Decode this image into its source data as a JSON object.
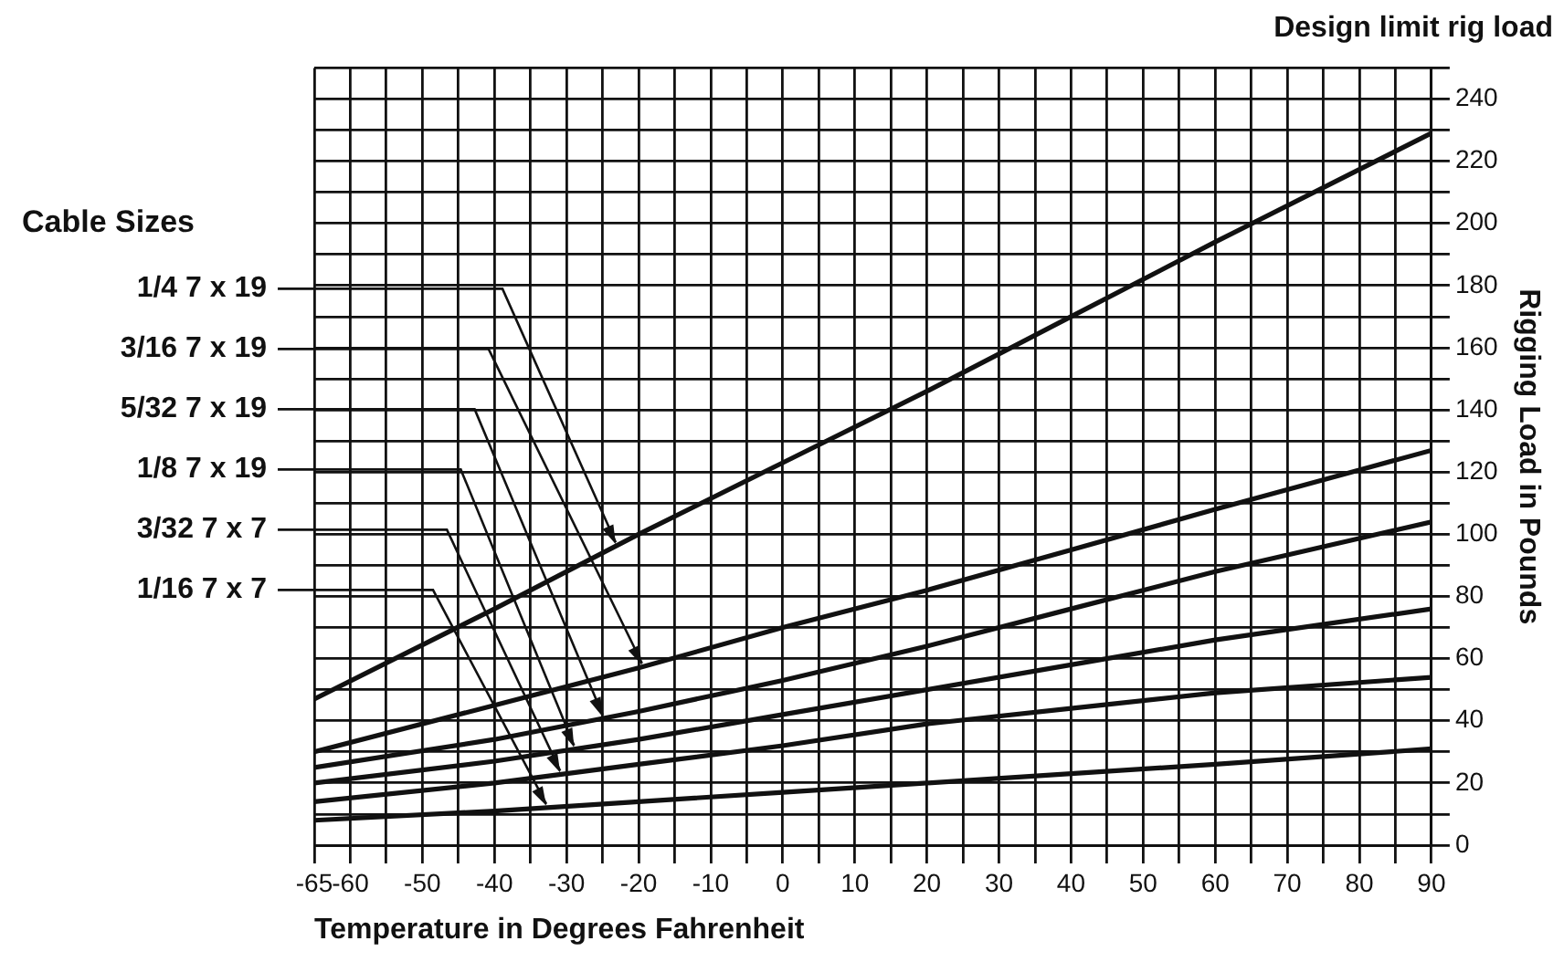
{
  "chart_data": {
    "type": "line",
    "title": "Design limit rig load",
    "xlabel": "Temperature in Degrees Fahrenheit",
    "ylabel": "Rigging Load in Pounds",
    "legend_title": "Cable Sizes",
    "legend": false,
    "grid": true,
    "marker": "none",
    "line_style": "solid",
    "x": [
      -65,
      -40,
      -20,
      0,
      20,
      40,
      60,
      90
    ],
    "xlim": [
      -65,
      90
    ],
    "xticks": [
      -65,
      -60,
      {
        "value": -55,
        "label": null
      },
      -50,
      {
        "value": -45,
        "label": null
      },
      -40,
      {
        "value": -35,
        "label": null
      },
      -30,
      {
        "value": -25,
        "label": null
      },
      -20,
      {
        "value": -15,
        "label": null
      },
      -10,
      {
        "value": -5,
        "label": null
      },
      0,
      {
        "value": 5,
        "label": null
      },
      10,
      {
        "value": 15,
        "label": null
      },
      20,
      {
        "value": 25,
        "label": null
      },
      30,
      {
        "value": 35,
        "label": null
      },
      40,
      {
        "value": 45,
        "label": null
      },
      50,
      {
        "value": 55,
        "label": null
      },
      60,
      {
        "value": 65,
        "label": null
      },
      70,
      {
        "value": 75,
        "label": null
      },
      80,
      {
        "value": 85,
        "label": null
      },
      90
    ],
    "ylim": [
      0,
      250
    ],
    "yticks": [
      0,
      {
        "value": 10,
        "label": null
      },
      20,
      {
        "value": 30,
        "label": null
      },
      40,
      {
        "value": 50,
        "label": null
      },
      60,
      {
        "value": 70,
        "label": null
      },
      80,
      {
        "value": 90,
        "label": null
      },
      100,
      {
        "value": 110,
        "label": null
      },
      120,
      {
        "value": 130,
        "label": null
      },
      140,
      {
        "value": 150,
        "label": null
      },
      160,
      {
        "value": 170,
        "label": null
      },
      180,
      {
        "value": 190,
        "label": null
      },
      200,
      {
        "value": 210,
        "label": null
      },
      220,
      {
        "value": 230,
        "label": null
      },
      240,
      {
        "value": 250,
        "label": null
      }
    ],
    "series": [
      {
        "name": "1/4 7 x 19",
        "color": "#111111",
        "values": [
          47,
          76,
          100,
          123,
          146,
          170,
          194,
          229
        ]
      },
      {
        "name": "3/16 7 x 19",
        "color": "#111111",
        "values": [
          30,
          45,
          57,
          70,
          82,
          95,
          108,
          127
        ]
      },
      {
        "name": "5/32 7 x 19",
        "color": "#111111",
        "values": [
          25,
          34,
          43,
          53,
          64,
          76,
          88,
          104
        ]
      },
      {
        "name": "1/8 7 x 19",
        "color": "#111111",
        "values": [
          20,
          27,
          34,
          42,
          50,
          58,
          66,
          76
        ]
      },
      {
        "name": "3/32 7 x 7",
        "color": "#111111",
        "values": [
          14,
          20,
          26,
          32,
          39,
          44,
          49,
          54
        ]
      },
      {
        "name": "1/16 7 x 7",
        "color": "#111111",
        "values": [
          8,
          11,
          14,
          17,
          20,
          23,
          26,
          31
        ]
      }
    ]
  }
}
